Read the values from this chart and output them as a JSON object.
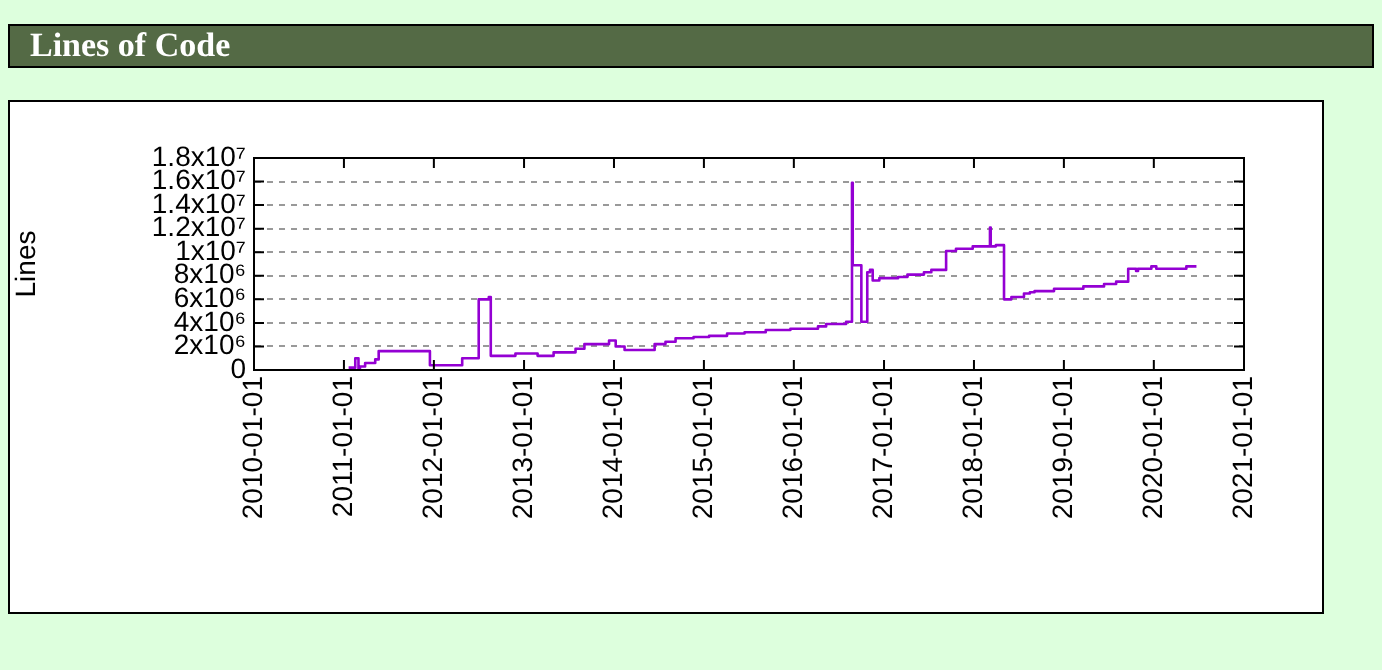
{
  "chart_data": {
    "type": "step",
    "title": "Lines of Code",
    "ylabel": "Lines",
    "grid": "y",
    "legend": false,
    "marker": "none",
    "line_style": "solid",
    "xlim": [
      "2010-01-01",
      "2021-01-01"
    ],
    "xticks": [
      "2010-01-01",
      "2011-01-01",
      "2012-01-01",
      "2013-01-01",
      "2014-01-01",
      "2015-01-01",
      "2016-01-01",
      "2017-01-01",
      "2018-01-01",
      "2019-01-01",
      "2020-01-01",
      "2021-01-01"
    ],
    "ylim": [
      0,
      18000000
    ],
    "yticks": [
      0,
      {
        "value": 2000000,
        "label": "2x10⁶"
      },
      {
        "value": 4000000,
        "label": "4x10⁶"
      },
      {
        "value": 6000000,
        "label": "6x10⁶"
      },
      {
        "value": 8000000,
        "label": "8x10⁶"
      },
      {
        "value": 10000000,
        "label": "1x10⁷"
      },
      {
        "value": 12000000,
        "label": "1.2x10⁷"
      },
      {
        "value": 14000000,
        "label": "1.4x10⁷"
      },
      {
        "value": 16000000,
        "label": "1.6x10⁷"
      },
      {
        "value": 18000000,
        "label": "1.8x10⁷"
      }
    ],
    "x": [
      "2011-01-20",
      "2011-02-16",
      "2011-03-01",
      "2011-03-07",
      "2011-03-28",
      "2011-05-08",
      "2011-05-22",
      "2011-12-16",
      "2012-04-25",
      "2012-07-01",
      "2012-08-11",
      "2012-08-19",
      "2012-11-27",
      "2013-02-25",
      "2013-05-01",
      "2013-07-29",
      "2013-09-03",
      "2013-12-12",
      "2014-01-08",
      "2014-02-13",
      "2014-06-15",
      "2014-07-29",
      "2014-09-08",
      "2014-11-20",
      "2015-01-22",
      "2015-04-05",
      "2015-06-15",
      "2015-09-09",
      "2015-12-18",
      "2016-04-08",
      "2016-05-11",
      "2016-07-31",
      "2016-08-24",
      "2016-08-27",
      "2016-10-01",
      "2016-10-25",
      "2016-11-05",
      "2016-11-16",
      "2016-12-13",
      "2017-02-27",
      "2017-04-06",
      "2017-06-12",
      "2017-07-12",
      "2017-09-10",
      "2017-10-20",
      "2017-12-27",
      "2018-03-07",
      "2018-03-10",
      "2018-03-31",
      "2018-05-03",
      "2018-06-02",
      "2018-07-23",
      "2018-08-16",
      "2018-09-04",
      "2018-11-22",
      "2019-03-21",
      "2019-06-13",
      "2019-08-01",
      "2019-09-19",
      "2019-10-21",
      "2019-10-29",
      "2019-12-22",
      "2020-01-11",
      "2020-05-12",
      "2020-06-22"
    ],
    "series": [
      {
        "color": "#9400d3",
        "values": [
          200000,
          1000000,
          100000,
          300000,
          600000,
          900000,
          1600000,
          400000,
          1000000,
          6000000,
          6200000,
          1200000,
          1400000,
          1200000,
          1500000,
          1800000,
          2200000,
          2500000,
          2000000,
          1700000,
          2200000,
          2400000,
          2700000,
          2800000,
          2900000,
          3100000,
          3200000,
          3400000,
          3500000,
          3700000,
          3900000,
          4100000,
          15900000,
          8900000,
          4100000,
          8300000,
          8500000,
          7600000,
          7800000,
          7900000,
          8100000,
          8300000,
          8500000,
          10100000,
          10300000,
          10500000,
          12100000,
          10500000,
          10600000,
          6000000,
          6200000,
          6500000,
          6600000,
          6700000,
          6900000,
          7100000,
          7300000,
          7500000,
          8600000,
          8400000,
          8600000,
          8800000,
          8600000,
          8800000,
          8800000
        ]
      }
    ]
  }
}
